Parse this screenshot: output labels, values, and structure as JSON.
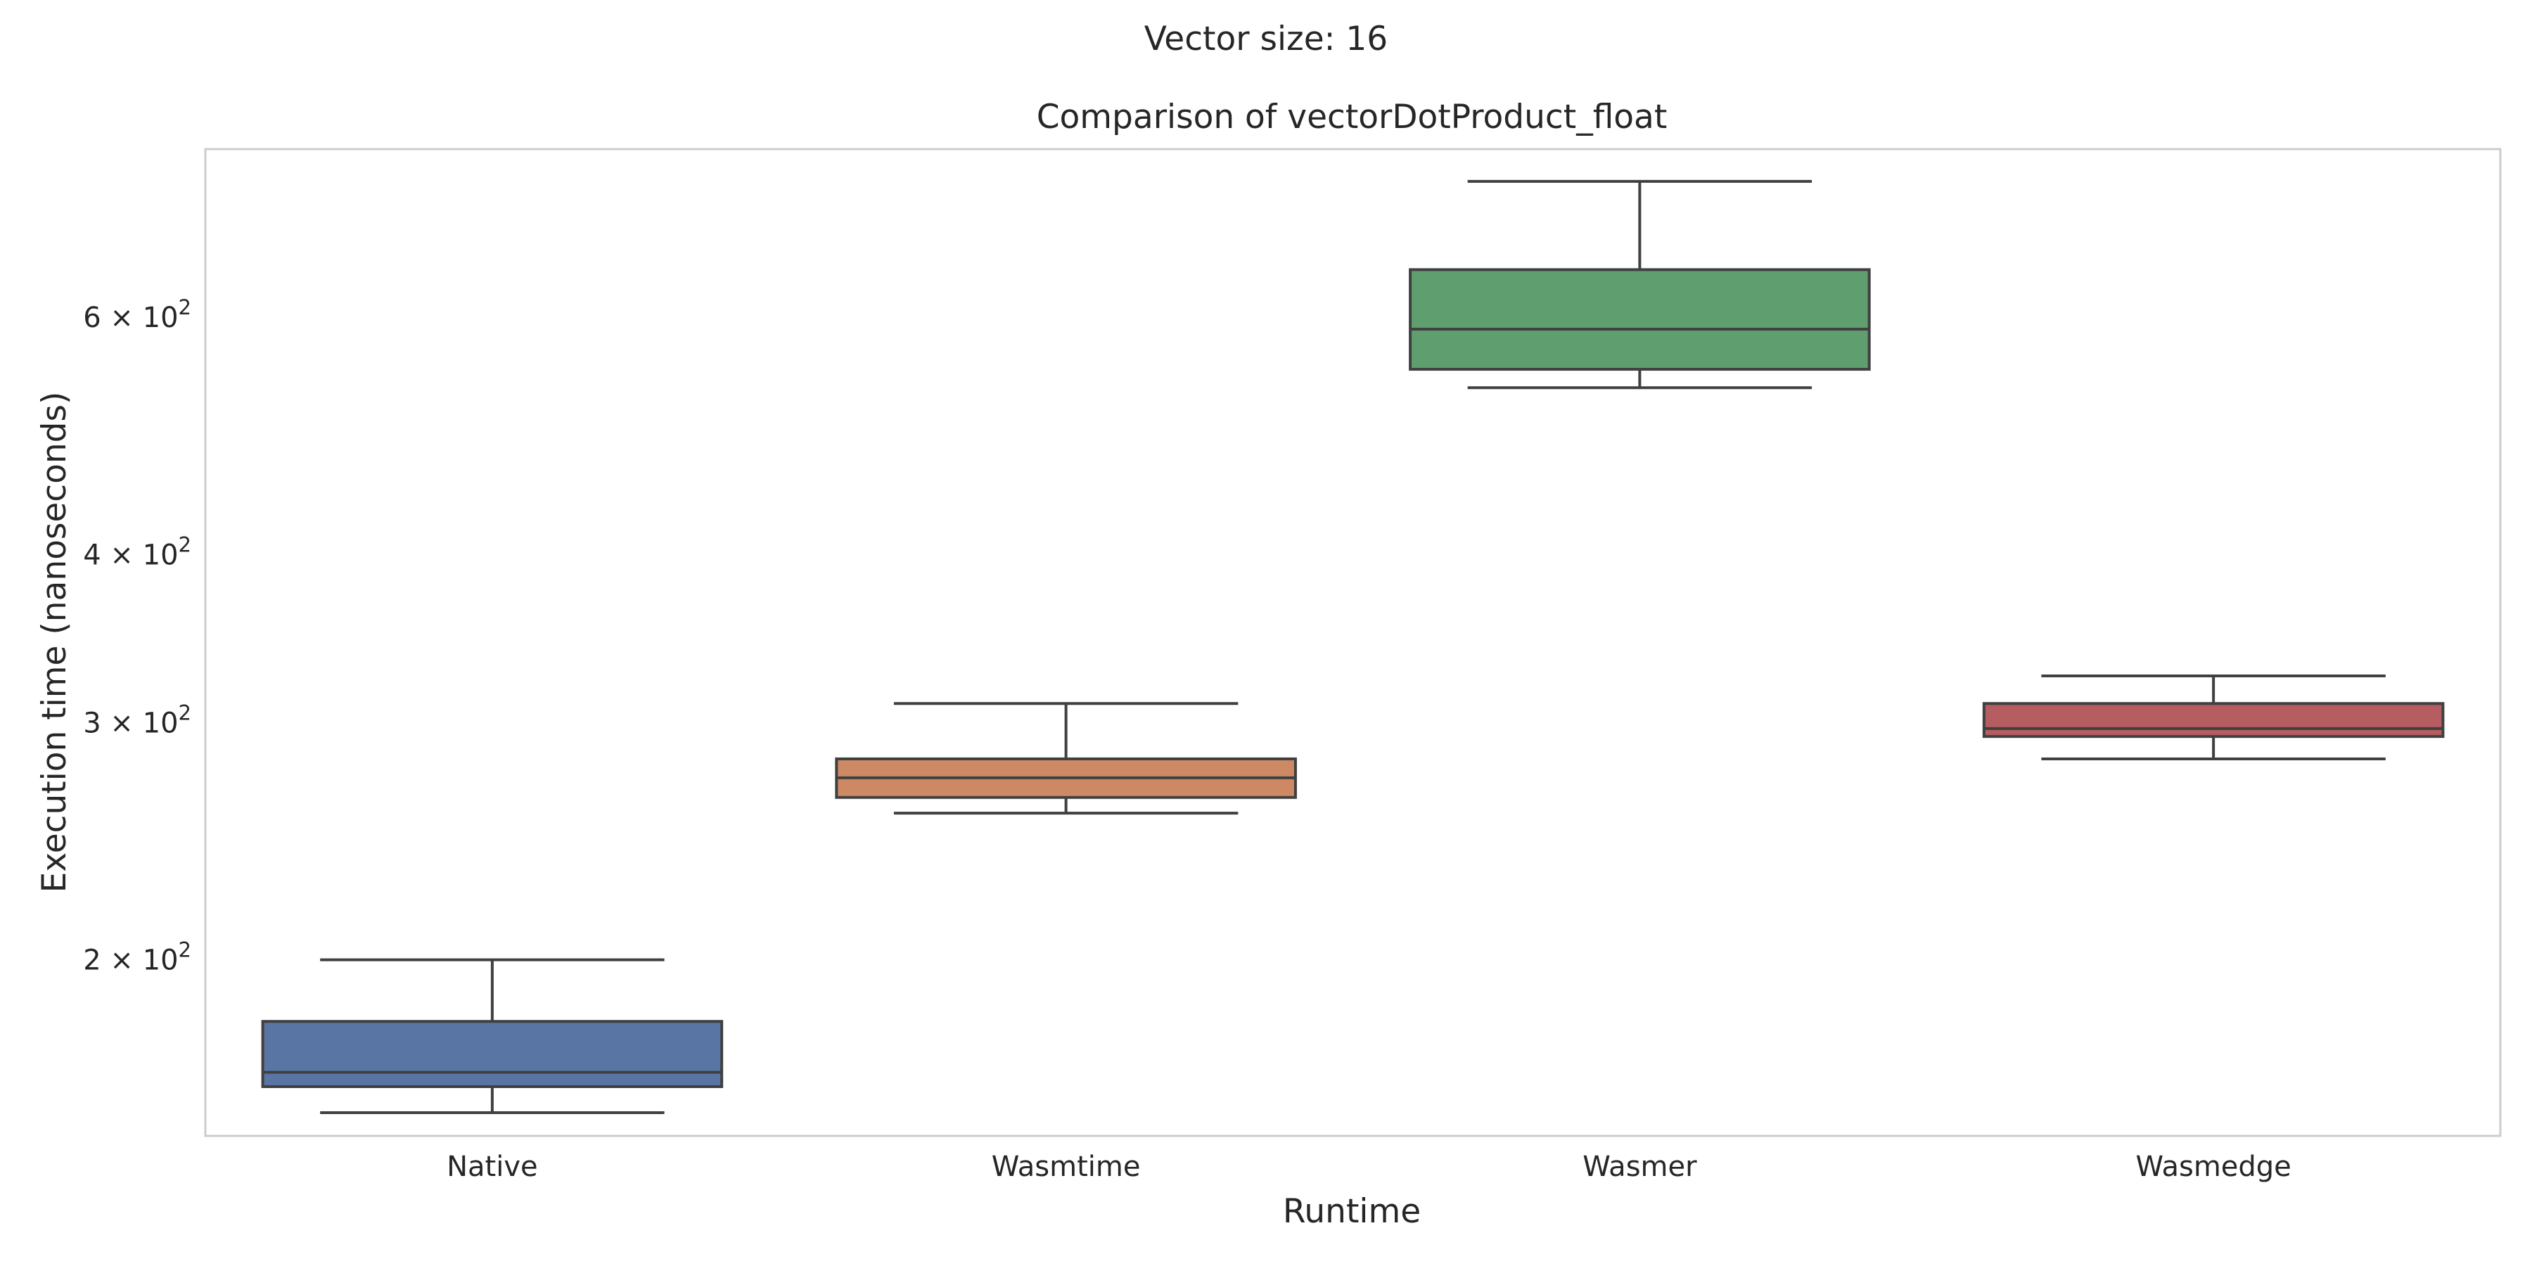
{
  "chart_data": {
    "type": "box",
    "suptitle": "Vector size: 16",
    "title": "Comparison of vectorDotProduct_float",
    "xlabel": "Runtime",
    "ylabel": "Execution time (nanoseconds)",
    "yscale": "log",
    "ylim": [
      148,
      800
    ],
    "yticks": [
      {
        "value": 200,
        "mantissa": "2",
        "base": "10",
        "exp": "2"
      },
      {
        "value": 300,
        "mantissa": "3",
        "base": "10",
        "exp": "2"
      },
      {
        "value": 400,
        "mantissa": "4",
        "base": "10",
        "exp": "2"
      },
      {
        "value": 600,
        "mantissa": "6",
        "base": "10",
        "exp": "2"
      }
    ],
    "grid": false,
    "categories": [
      "Native",
      "Wasmtime",
      "Wasmer",
      "Wasmedge"
    ],
    "boxes": [
      {
        "name": "Native",
        "whisker_low": 154,
        "q1": 161,
        "median": 165,
        "q3": 180,
        "whisker_high": 200,
        "color": "#5975a4"
      },
      {
        "name": "Wasmtime",
        "whisker_low": 257,
        "q1": 264,
        "median": 273,
        "q3": 282,
        "whisker_high": 310,
        "color": "#cc8963"
      },
      {
        "name": "Wasmer",
        "whisker_low": 532,
        "q1": 549,
        "median": 588,
        "q3": 651,
        "whisker_high": 757,
        "color": "#5f9e6e"
      },
      {
        "name": "Wasmedge",
        "whisker_low": 282,
        "q1": 293,
        "median": 297,
        "q3": 310,
        "whisker_high": 325,
        "color": "#b55d60"
      }
    ]
  }
}
